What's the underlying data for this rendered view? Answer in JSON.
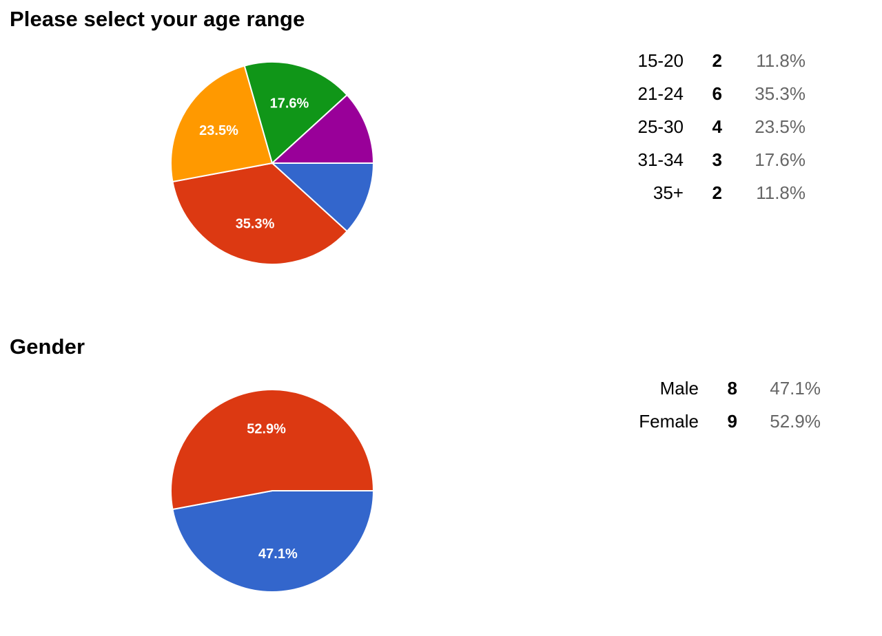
{
  "chart_data": [
    {
      "type": "pie",
      "title": "Please select your age range",
      "categories": [
        "15-20",
        "21-24",
        "25-30",
        "31-34",
        "35+"
      ],
      "values": [
        2,
        6,
        4,
        3,
        2
      ],
      "percents": [
        "11.8%",
        "35.3%",
        "23.5%",
        "17.6%",
        "11.8%"
      ],
      "slice_labels": [
        "",
        "35.3%",
        "23.5%",
        "17.6%",
        ""
      ],
      "colors": [
        "#3366cc",
        "#dc3912",
        "#ff9900",
        "#109618",
        "#990099"
      ],
      "legend": "right"
    },
    {
      "type": "pie",
      "title": "Gender",
      "categories": [
        "Male",
        "Female"
      ],
      "values": [
        8,
        9
      ],
      "percents": [
        "47.1%",
        "52.9%"
      ],
      "slice_labels": [
        "47.1%",
        "52.9%"
      ],
      "colors": [
        "#3366cc",
        "#dc3912"
      ],
      "legend": "right"
    }
  ]
}
